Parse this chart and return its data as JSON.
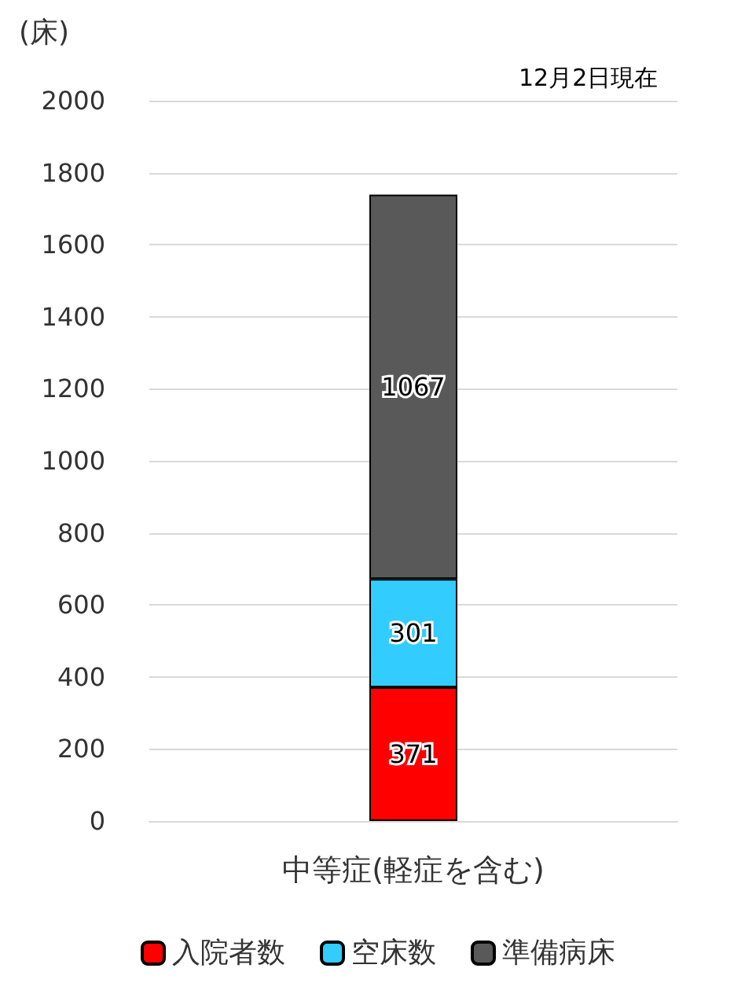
{
  "chart_data": {
    "type": "bar",
    "stacked": true,
    "ylabel": "(床)",
    "annotations": [
      "12月2日現在"
    ],
    "categories": [
      "中等症(軽症を含む)"
    ],
    "series": [
      {
        "name": "入院者数",
        "color": "#ff0000",
        "values": [
          371
        ]
      },
      {
        "name": "空床数",
        "color": "#33ccff",
        "values": [
          301
        ]
      },
      {
        "name": "準備病床",
        "color": "#595959",
        "values": [
          1067
        ]
      }
    ],
    "ylim": [
      0,
      2000
    ],
    "yticks": [
      0,
      200,
      400,
      600,
      800,
      1000,
      1200,
      1400,
      1600,
      1800,
      2000
    ],
    "grid": "y",
    "legend": "bottom",
    "data_labels": true
  }
}
